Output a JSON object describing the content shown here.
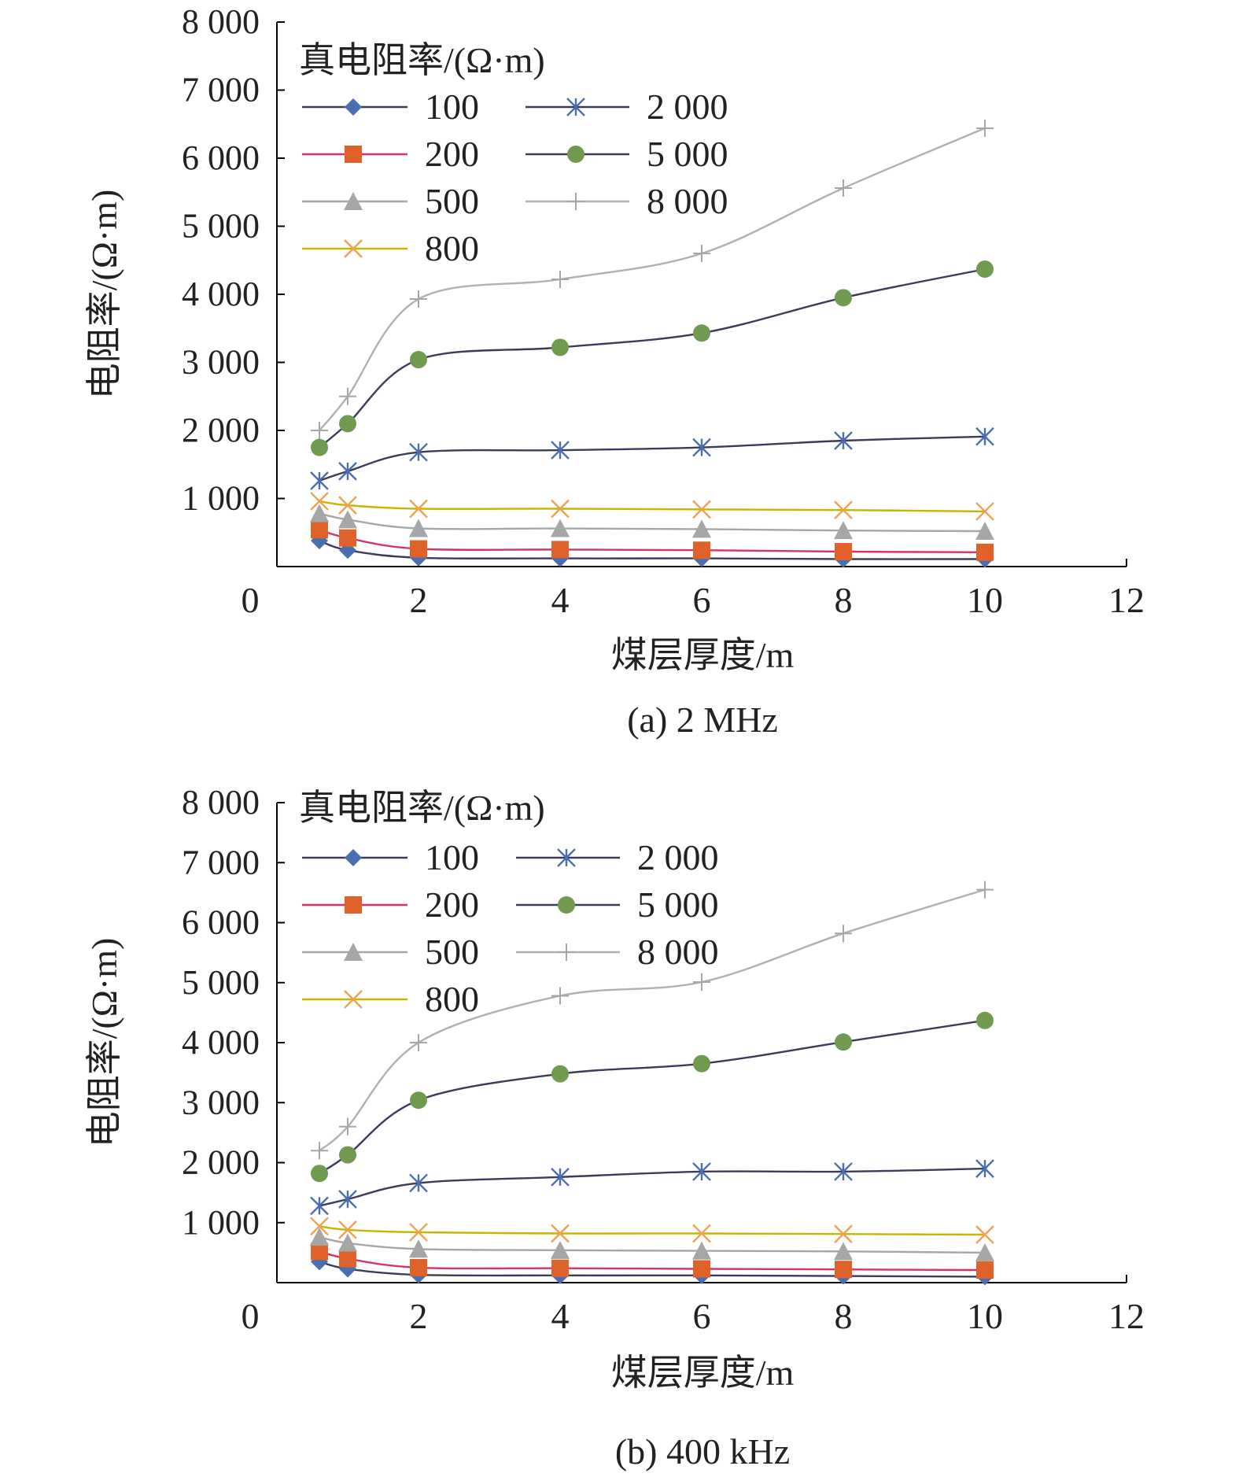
{
  "chart_data": [
    {
      "type": "line",
      "caption": "(a) 2 MHz",
      "xlabel": "煤层厚度/m",
      "ylabel": "电阻率/(Ω·m)",
      "xlim": [
        0,
        12
      ],
      "ylim": [
        0,
        8000
      ],
      "x_ticks": [
        0,
        2,
        4,
        6,
        8,
        10,
        12
      ],
      "x_tick_labels": [
        "0",
        "2",
        "4",
        "6",
        "8",
        "10",
        "12"
      ],
      "y_ticks": [
        1000,
        2000,
        3000,
        4000,
        5000,
        6000,
        7000,
        8000
      ],
      "y_tick_labels": [
        "1 000",
        "2 000",
        "3 000",
        "4 000",
        "5 000",
        "6 000",
        "7 000",
        "8 000"
      ],
      "legend_title": "真电阻率/(Ω·m)",
      "legend_position": "top-left",
      "x": [
        0.6,
        1.0,
        2,
        4,
        6,
        8,
        10
      ],
      "series": [
        {
          "name": "100",
          "marker": "diamond",
          "color": "#4a6fb0",
          "line_color": "#3b3b5c",
          "values": [
            380,
            240,
            130,
            120,
            120,
            110,
            110
          ]
        },
        {
          "name": "200",
          "marker": "square",
          "color": "#e0622b",
          "line_color": "#d6336c",
          "values": [
            540,
            420,
            260,
            250,
            240,
            220,
            210
          ]
        },
        {
          "name": "500",
          "marker": "triangle",
          "color": "#a6a6a6",
          "line_color": "#a6a6a6",
          "values": [
            780,
            690,
            560,
            560,
            550,
            530,
            520
          ]
        },
        {
          "name": "800",
          "marker": "x",
          "color": "#f0a050",
          "line_color": "#c9b400",
          "values": [
            960,
            900,
            850,
            850,
            840,
            830,
            810
          ]
        },
        {
          "name": "2 000",
          "marker": "star",
          "color": "#4a6fb0",
          "line_color": "#3b3b5c",
          "values": [
            1260,
            1400,
            1680,
            1710,
            1750,
            1850,
            1910
          ]
        },
        {
          "name": "5 000",
          "marker": "circle",
          "color": "#6f9a4f",
          "line_color": "#3b3b5c",
          "values": [
            1750,
            2100,
            3040,
            3220,
            3430,
            3950,
            4370
          ]
        },
        {
          "name": "8 000",
          "marker": "plus",
          "color": "#a6a6a6",
          "line_color": "#b0b0b0",
          "values": [
            2000,
            2500,
            3930,
            4220,
            4600,
            5560,
            6440
          ]
        }
      ]
    },
    {
      "type": "line",
      "caption": "(b) 400 kHz",
      "xlabel": "煤层厚度/m",
      "ylabel": "电阻率/(Ω·m)",
      "xlim": [
        0,
        12
      ],
      "ylim": [
        0,
        8000
      ],
      "x_ticks": [
        0,
        2,
        4,
        6,
        8,
        10,
        12
      ],
      "x_tick_labels": [
        "0",
        "2",
        "4",
        "6",
        "8",
        "10",
        "12"
      ],
      "y_ticks": [
        1000,
        2000,
        3000,
        4000,
        5000,
        6000,
        7000,
        8000
      ],
      "y_tick_labels": [
        "1 000",
        "2 000",
        "3 000",
        "4 000",
        "5 000",
        "6 000",
        "7 000",
        "8 000"
      ],
      "legend_title": "真电阻率/(Ω·m)",
      "legend_position": "top-left",
      "x": [
        0.6,
        1.0,
        2,
        4,
        6,
        8,
        10
      ],
      "series": [
        {
          "name": "100",
          "marker": "diamond",
          "color": "#4a6fb0",
          "line_color": "#3b3b5c",
          "values": [
            350,
            230,
            130,
            120,
            120,
            110,
            100
          ]
        },
        {
          "name": "200",
          "marker": "square",
          "color": "#e0622b",
          "line_color": "#d6336c",
          "values": [
            520,
            400,
            250,
            240,
            230,
            220,
            210
          ]
        },
        {
          "name": "500",
          "marker": "triangle",
          "color": "#a6a6a6",
          "line_color": "#a6a6a6",
          "values": [
            760,
            660,
            560,
            540,
            530,
            520,
            500
          ]
        },
        {
          "name": "800",
          "marker": "x",
          "color": "#f0a050",
          "line_color": "#c9b400",
          "values": [
            940,
            880,
            840,
            820,
            820,
            810,
            800
          ]
        },
        {
          "name": "2 000",
          "marker": "star",
          "color": "#4a6fb0",
          "line_color": "#3b3b5c",
          "values": [
            1280,
            1390,
            1660,
            1760,
            1850,
            1850,
            1900
          ]
        },
        {
          "name": "5 000",
          "marker": "circle",
          "color": "#6f9a4f",
          "line_color": "#3b3b5c",
          "values": [
            1820,
            2130,
            3040,
            3480,
            3650,
            4010,
            4370
          ]
        },
        {
          "name": "8 000",
          "marker": "plus",
          "color": "#a6a6a6",
          "line_color": "#b0b0b0",
          "values": [
            2200,
            2600,
            4000,
            4780,
            5010,
            5820,
            6550
          ]
        }
      ]
    }
  ]
}
